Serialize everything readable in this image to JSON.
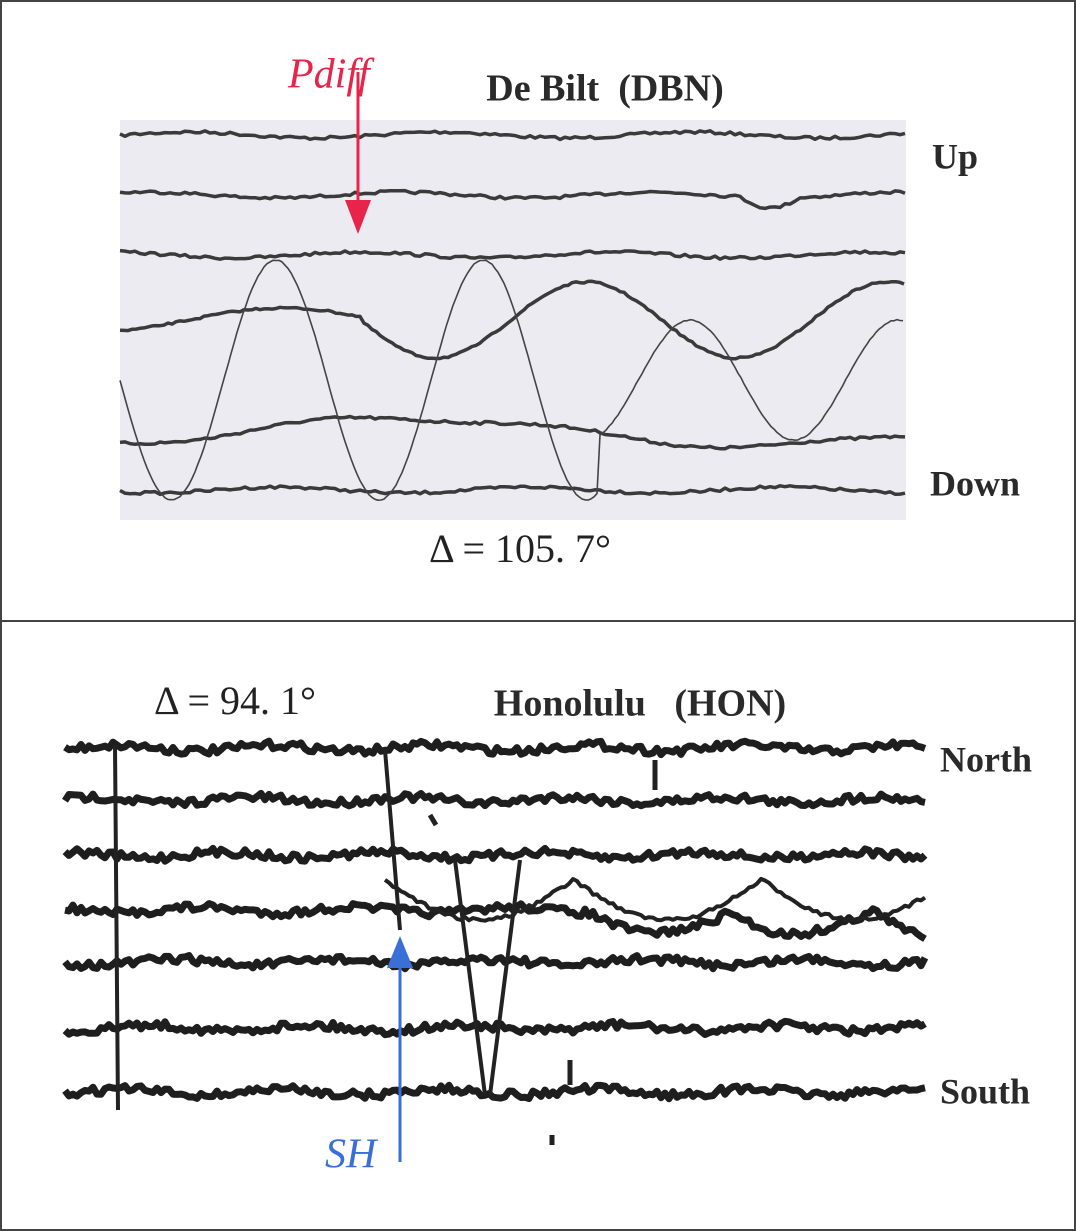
{
  "top_panel": {
    "title": "De Bilt  (DBN)",
    "annotation": "Pdiff",
    "upper_label": "Up",
    "lower_label": "Down",
    "distance": "Δ = 105. 7°"
  },
  "bottom_panel": {
    "distance": "Δ = 94. 1°",
    "title": "Honolulu   (HON)",
    "upper_label": "North",
    "lower_label": "South",
    "annotation": "SH"
  }
}
